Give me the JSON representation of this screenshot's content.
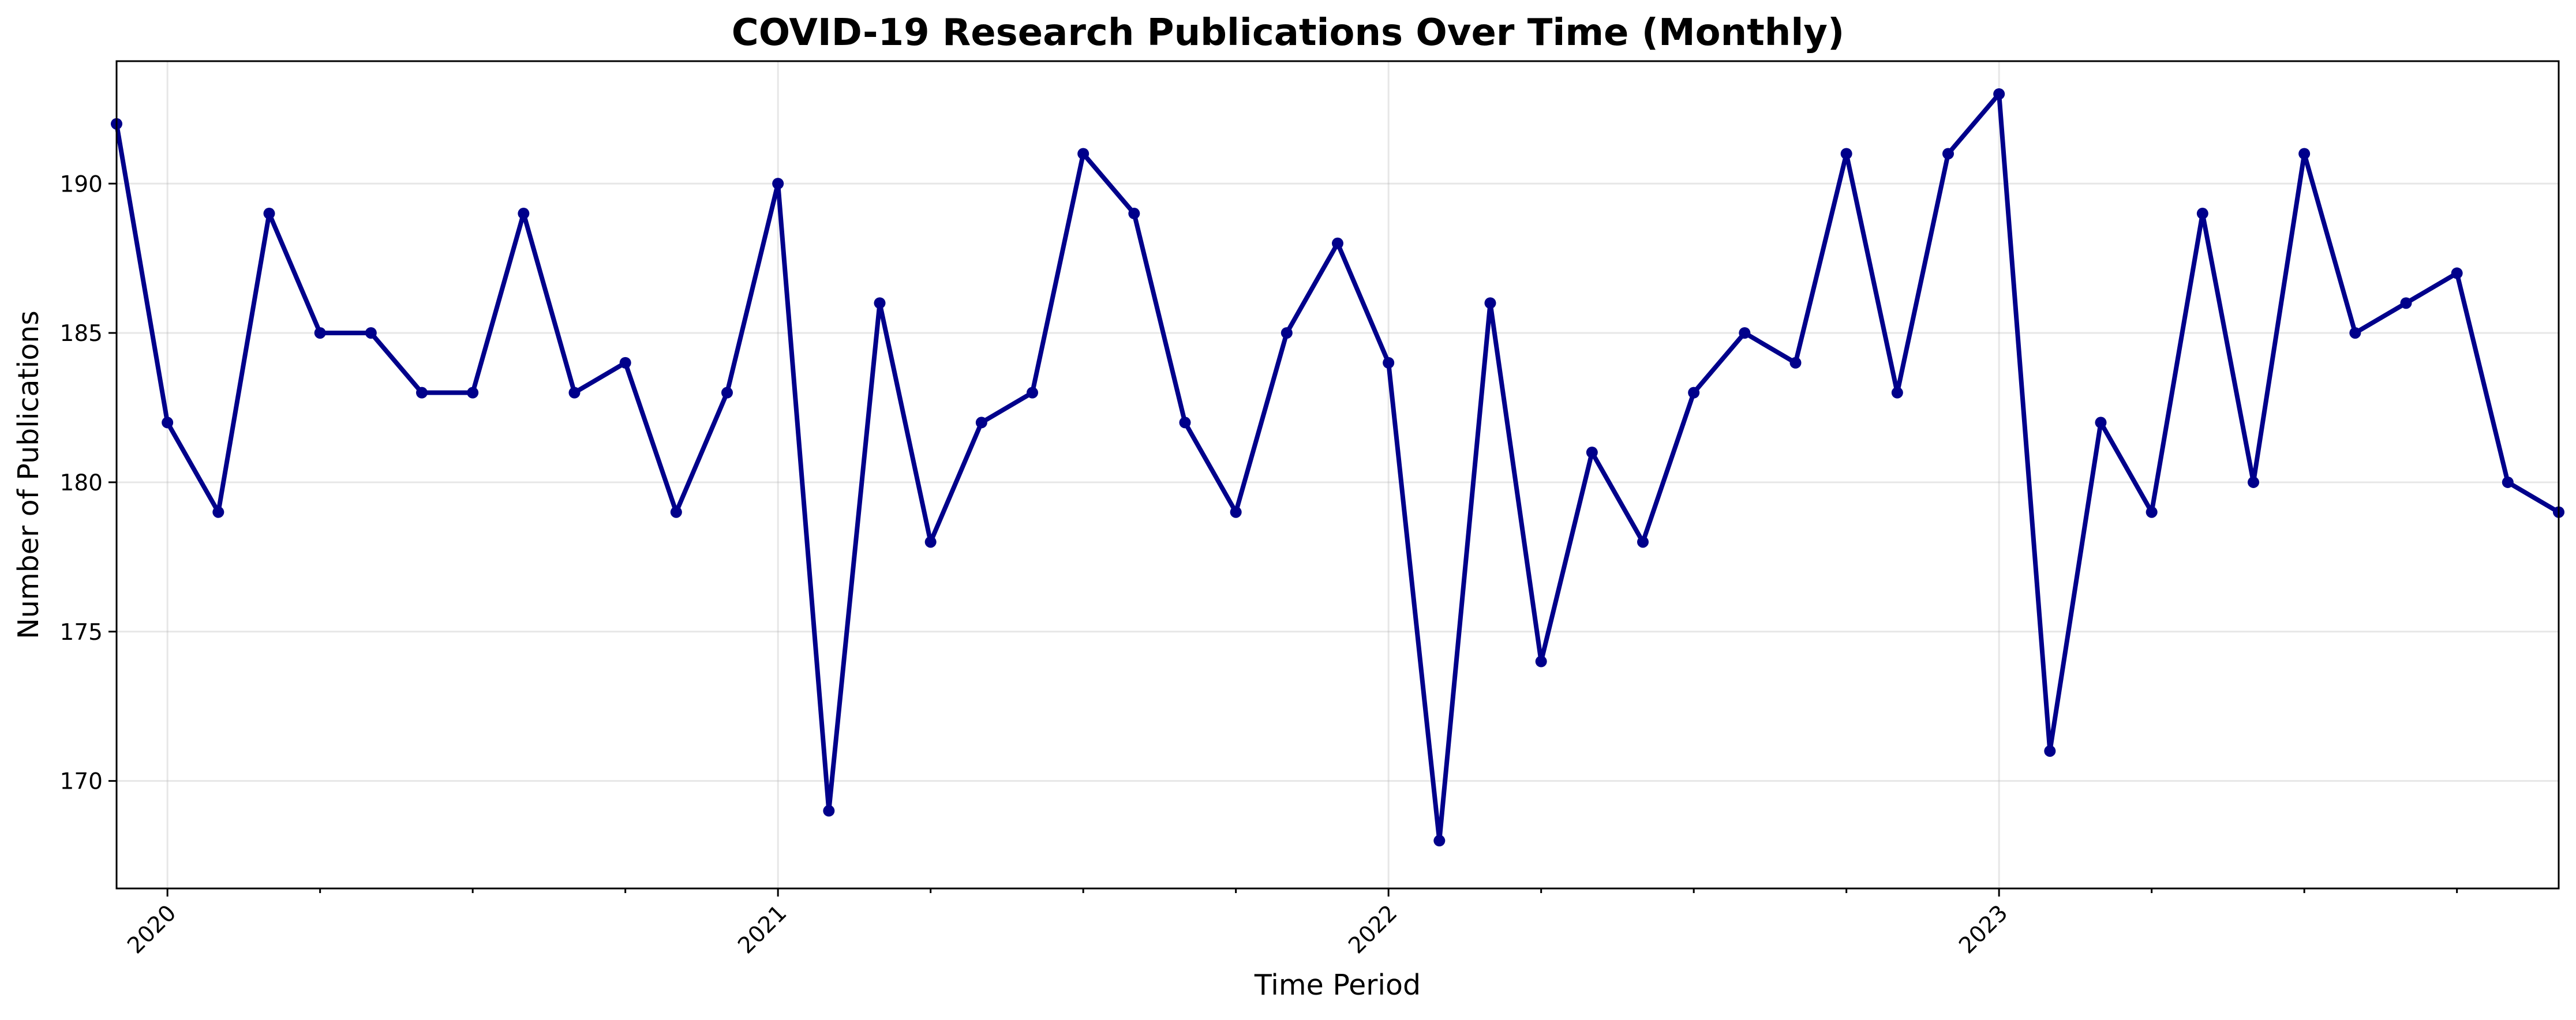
{
  "chart_data": {
    "type": "line",
    "title": "COVID-19 Research Publications Over Time (Monthly)",
    "xlabel": "Time Period",
    "ylabel": "Number of Publications",
    "line_color": "#00008b",
    "grid": true,
    "xlim": [
      "2019-12-01",
      "2024-01-01"
    ],
    "ylim": [
      166.4,
      194.1
    ],
    "yticks": [
      170,
      175,
      180,
      185,
      190
    ],
    "xticks": [
      {
        "date": "2020-01-01",
        "label": "2020"
      },
      {
        "date": "2021-01-01",
        "label": "2021"
      },
      {
        "date": "2022-01-01",
        "label": "2022"
      },
      {
        "date": "2023-01-01",
        "label": "2023"
      }
    ],
    "series": [
      {
        "x": [
          "2019-12",
          "2020-01",
          "2020-02",
          "2020-03",
          "2020-04",
          "2020-05",
          "2020-06",
          "2020-07",
          "2020-08",
          "2020-09",
          "2020-10",
          "2020-11",
          "2020-12",
          "2021-01",
          "2021-02",
          "2021-03",
          "2021-04",
          "2021-05",
          "2021-06",
          "2021-07",
          "2021-08",
          "2021-09",
          "2021-10",
          "2021-11",
          "2021-12",
          "2022-01",
          "2022-02",
          "2022-03",
          "2022-04",
          "2022-05",
          "2022-06",
          "2022-07",
          "2022-08",
          "2022-09",
          "2022-10",
          "2022-11",
          "2022-12",
          "2023-01",
          "2023-02",
          "2023-03",
          "2023-04",
          "2023-05",
          "2023-06",
          "2023-07",
          "2023-08",
          "2023-09",
          "2023-10",
          "2023-11",
          "2023-12"
        ],
        "values": [
          192,
          182,
          179,
          189,
          185,
          185,
          183,
          183,
          189,
          183,
          184,
          179,
          183,
          190,
          169,
          186,
          178,
          182,
          183,
          191,
          189,
          182,
          179,
          185,
          188,
          184,
          168,
          186,
          174,
          181,
          178,
          183,
          185,
          184,
          191,
          183,
          191,
          193,
          171,
          182,
          179,
          189,
          180,
          191,
          185,
          186,
          187,
          180,
          179
        ]
      }
    ]
  }
}
